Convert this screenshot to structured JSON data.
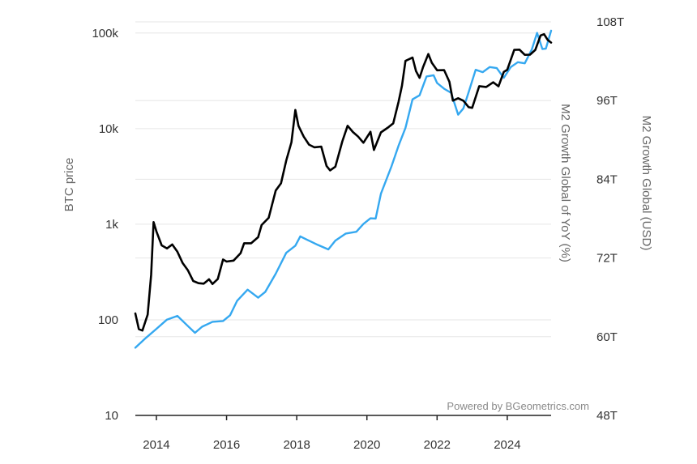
{
  "chart_data": {
    "type": "line",
    "title": "",
    "xlabel": "",
    "ylabel": "BTC price",
    "y2label": "M2 Growth Global (USD)",
    "y3label": "M2 Growth Global of YoY (%)",
    "xlim": [
      2013.4,
      2025.25
    ],
    "x_ticks": [
      2014,
      2016,
      2018,
      2020,
      2022,
      2024
    ],
    "x_tick_labels": [
      "2014",
      "2016",
      "2018",
      "2020",
      "2022",
      "2024"
    ],
    "y_scale": "log",
    "ylim": [
      10,
      150000
    ],
    "y_ticks": [
      10,
      100,
      1000,
      10000,
      100000
    ],
    "y_tick_labels": [
      "10",
      "100",
      "1k",
      "10k",
      "100k"
    ],
    "y2lim": [
      48,
      108
    ],
    "y2_ticks": [
      48,
      60,
      72,
      84,
      96,
      108
    ],
    "y2_tick_labels": [
      "48T",
      "60T",
      "72T",
      "84T",
      "96T",
      "108T"
    ],
    "watermark": "Powered by BGeometrics.com",
    "grid": true,
    "series": [
      {
        "name": "BTC price",
        "axis": "left",
        "color": "#000000",
        "x": [
          2013.4,
          2013.5,
          2013.6,
          2013.75,
          2013.85,
          2013.92,
          2014.0,
          2014.15,
          2014.3,
          2014.45,
          2014.6,
          2014.75,
          2014.9,
          2015.05,
          2015.2,
          2015.35,
          2015.5,
          2015.6,
          2015.75,
          2015.9,
          2016.0,
          2016.2,
          2016.4,
          2016.5,
          2016.7,
          2016.9,
          2017.0,
          2017.2,
          2017.4,
          2017.55,
          2017.7,
          2017.85,
          2017.96,
          2018.05,
          2018.2,
          2018.35,
          2018.5,
          2018.7,
          2018.85,
          2018.95,
          2019.1,
          2019.3,
          2019.45,
          2019.6,
          2019.75,
          2019.9,
          2020.1,
          2020.2,
          2020.4,
          2020.6,
          2020.75,
          2020.9,
          2021.0,
          2021.1,
          2021.3,
          2021.4,
          2021.5,
          2021.6,
          2021.75,
          2021.85,
          2022.0,
          2022.2,
          2022.35,
          2022.45,
          2022.6,
          2022.75,
          2022.9,
          2023.0,
          2023.2,
          2023.4,
          2023.6,
          2023.75,
          2023.9,
          2024.0,
          2024.2,
          2024.35,
          2024.5,
          2024.65,
          2024.8,
          2024.95,
          2025.05,
          2025.15,
          2025.25
        ],
        "values": [
          120,
          80,
          75,
          110,
          300,
          1050,
          850,
          600,
          550,
          600,
          500,
          380,
          320,
          250,
          240,
          240,
          270,
          230,
          260,
          420,
          400,
          420,
          500,
          650,
          620,
          740,
          950,
          1200,
          2200,
          2600,
          4500,
          7000,
          16000,
          11000,
          8500,
          7000,
          6500,
          6300,
          4000,
          3600,
          3900,
          7500,
          11000,
          9500,
          8500,
          7300,
          9000,
          6000,
          9000,
          10500,
          11500,
          19000,
          29000,
          50000,
          57000,
          40000,
          33000,
          45000,
          61000,
          50000,
          42000,
          40000,
          30000,
          20000,
          21000,
          19500,
          16500,
          17000,
          27000,
          28000,
          30000,
          27000,
          38000,
          42000,
          65000,
          66000,
          59000,
          60000,
          68000,
          97000,
          95000,
          84000,
          82000
        ]
      },
      {
        "name": "M2 Growth Global (USD)",
        "axis": "right",
        "color": "#35a8f0",
        "x": [
          2013.4,
          2013.7,
          2014.0,
          2014.3,
          2014.6,
          2014.9,
          2015.1,
          2015.3,
          2015.6,
          2015.9,
          2016.1,
          2016.3,
          2016.6,
          2016.9,
          2017.1,
          2017.4,
          2017.7,
          2017.96,
          2018.1,
          2018.3,
          2018.6,
          2018.9,
          2019.1,
          2019.4,
          2019.7,
          2019.9,
          2020.1,
          2020.25,
          2020.4,
          2020.7,
          2020.9,
          2021.1,
          2021.3,
          2021.5,
          2021.7,
          2021.9,
          2022.0,
          2022.2,
          2022.4,
          2022.6,
          2022.75,
          2022.9,
          2023.1,
          2023.3,
          2023.5,
          2023.7,
          2023.9,
          2024.1,
          2024.3,
          2024.5,
          2024.7,
          2024.85,
          2025.0,
          2025.1,
          2025.25
        ],
        "values": [
          58.5,
          59.8,
          61.0,
          62.5,
          63.3,
          61.8,
          60.4,
          61.7,
          62.4,
          62.3,
          63.3,
          65.5,
          67.0,
          65.8,
          67.0,
          69.6,
          72.6,
          74.0,
          75.2,
          74.8,
          74.2,
          73.4,
          74.5,
          75.8,
          76.2,
          77.0,
          78.2,
          78.2,
          82.0,
          86.0,
          89.0,
          92.0,
          96.0,
          97.0,
          99.5,
          100.0,
          98.5,
          98.0,
          97.0,
          94.0,
          95.0,
          97.5,
          100.5,
          100.5,
          101.0,
          101.0,
          99.5,
          101.0,
          102.0,
          101.5,
          104.0,
          106.5,
          104.0,
          104.0,
          106.8
        ]
      }
    ]
  }
}
